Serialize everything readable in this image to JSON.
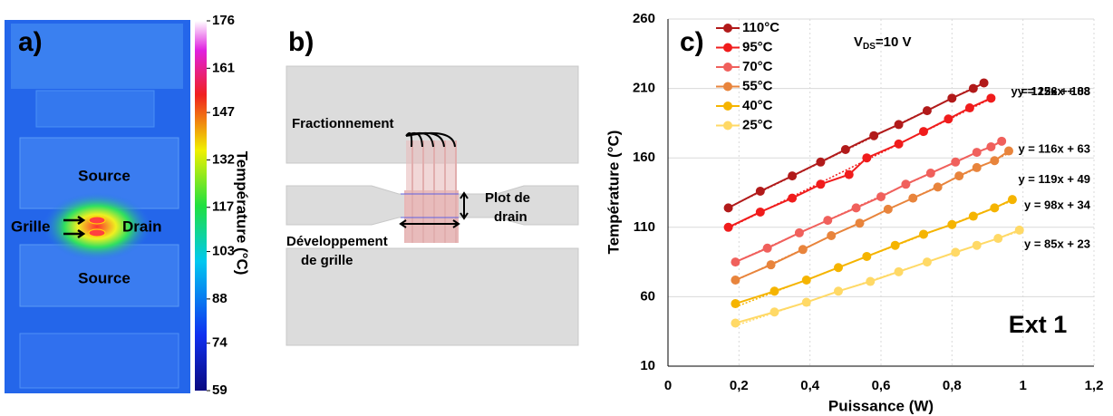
{
  "panel_a": {
    "label": "a)",
    "texts": [
      "Source",
      "Grille",
      "Drain",
      "Source"
    ],
    "colorbar": {
      "title": "Température (°C)",
      "lim": [
        59,
        176
      ],
      "ticks": [
        176,
        161,
        147,
        132,
        117,
        103,
        88,
        74,
        59
      ]
    }
  },
  "panel_b": {
    "label": "b)",
    "fractionnement": "Fractionnement",
    "plot_drain": [
      "Plot de",
      "drain"
    ],
    "developpement": [
      "Développement",
      "de grille"
    ]
  },
  "chart_data": {
    "type": "line",
    "panel_label": "c)",
    "xlabel": "Puissance (W)",
    "ylabel": "Température (°C)",
    "annotation": {
      "v": "V",
      "sub": "DS",
      "rest": "=10 V"
    },
    "watermark": "Ext 1",
    "xlim": [
      0,
      1.2
    ],
    "ylim": [
      10,
      260
    ],
    "xticks": [
      0,
      {
        "value": 0.2,
        "label": "0,2"
      },
      {
        "value": 0.4,
        "label": "0,4"
      },
      {
        "value": 0.6,
        "label": "0,6"
      },
      {
        "value": 0.8,
        "label": "0,8"
      },
      1,
      {
        "value": 1.2,
        "label": "1,2"
      }
    ],
    "yticks": [
      10,
      60,
      110,
      160,
      210,
      260
    ],
    "grid": true,
    "series": [
      {
        "name": "110°C",
        "color": "#b11a1a",
        "x": [
          0.17,
          0.26,
          0.35,
          0.43,
          0.5,
          0.58,
          0.65,
          0.73,
          0.8,
          0.86,
          0.89
        ],
        "values": [
          124,
          136,
          147,
          157,
          166,
          176,
          184,
          194,
          203,
          210,
          214
        ],
        "fit": {
          "slope": 125,
          "intercept": 103,
          "label": "y = 125x + 103"
        }
      },
      {
        "name": "95°C",
        "color": "#f01c1c",
        "x": [
          0.17,
          0.26,
          0.35,
          0.43,
          0.51,
          0.56,
          0.65,
          0.72,
          0.79,
          0.85,
          0.91
        ],
        "values": [
          110,
          121,
          131,
          141,
          148,
          160,
          170,
          179,
          188,
          196,
          203
        ],
        "fit": {
          "slope": 126,
          "intercept": 88,
          "label": "y = 126x + 88"
        }
      },
      {
        "name": "70°C",
        "color": "#f0605c",
        "x": [
          0.19,
          0.28,
          0.37,
          0.45,
          0.53,
          0.6,
          0.67,
          0.74,
          0.81,
          0.87,
          0.91,
          0.94
        ],
        "values": [
          85,
          95,
          106,
          115,
          124,
          132,
          141,
          149,
          157,
          164,
          168,
          172
        ],
        "fit": {
          "slope": 116,
          "intercept": 63,
          "label": "y = 116x + 63"
        }
      },
      {
        "name": "55°C",
        "color": "#e8843c",
        "x": [
          0.19,
          0.29,
          0.38,
          0.46,
          0.54,
          0.62,
          0.69,
          0.76,
          0.82,
          0.87,
          0.92,
          0.96
        ],
        "values": [
          72,
          83,
          94,
          104,
          113,
          123,
          131,
          139,
          147,
          153,
          158,
          165
        ],
        "fit": {
          "slope": 119,
          "intercept": 49,
          "label": "y = 119x + 49"
        }
      },
      {
        "name": "40°C",
        "color": "#f5b400",
        "x": [
          0.19,
          0.3,
          0.39,
          0.48,
          0.56,
          0.64,
          0.72,
          0.8,
          0.86,
          0.92,
          0.97
        ],
        "values": [
          55,
          64,
          72,
          81,
          89,
          97,
          105,
          112,
          118,
          124,
          130
        ],
        "fit": {
          "slope": 98,
          "intercept": 34,
          "label": "y = 98x + 34"
        }
      },
      {
        "name": "25°C",
        "color": "#ffd966",
        "x": [
          0.19,
          0.3,
          0.39,
          0.48,
          0.57,
          0.65,
          0.73,
          0.81,
          0.87,
          0.93,
          0.99
        ],
        "values": [
          41,
          49,
          56,
          64,
          71,
          78,
          85,
          92,
          97,
          102,
          108
        ],
        "fit": {
          "slope": 85,
          "intercept": 23,
          "label": "y = 85x + 23"
        }
      }
    ]
  }
}
